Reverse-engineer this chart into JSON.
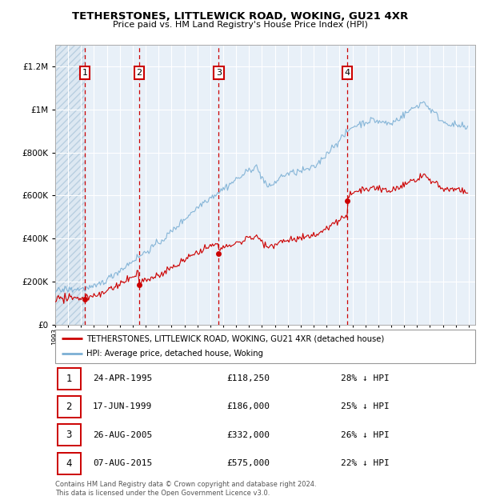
{
  "title": "TETHERSTONES, LITTLEWICK ROAD, WOKING, GU21 4XR",
  "subtitle": "Price paid vs. HM Land Registry's House Price Index (HPI)",
  "ytick_vals": [
    0,
    200000,
    400000,
    600000,
    800000,
    1000000,
    1200000
  ],
  "ylim": [
    0,
    1300000
  ],
  "xlim_start": 1993,
  "xlim_end": 2025.5,
  "sales": [
    {
      "label": 1,
      "date": "24-APR-1995",
      "year": 1995.3,
      "price": 118250,
      "pct": "28% ↓ HPI"
    },
    {
      "label": 2,
      "date": "17-JUN-1999",
      "year": 1999.5,
      "price": 186000,
      "pct": "25% ↓ HPI"
    },
    {
      "label": 3,
      "date": "26-AUG-2005",
      "year": 2005.65,
      "price": 332000,
      "pct": "26% ↓ HPI"
    },
    {
      "label": 4,
      "date": "07-AUG-2015",
      "year": 2015.6,
      "price": 575000,
      "pct": "22% ↓ HPI"
    }
  ],
  "hpi_color": "#7bafd4",
  "sale_color": "#cc0000",
  "legend_sale_label": "TETHERSTONES, LITTLEWICK ROAD, WOKING, GU21 4XR (detached house)",
  "legend_hpi_label": "HPI: Average price, detached house, Woking",
  "footer": "Contains HM Land Registry data © Crown copyright and database right 2024.\nThis data is licensed under the Open Government Licence v3.0.",
  "bg_plot": "#e8f0f8",
  "bg_hatch_color": "#c8d8e8",
  "grid_color": "#ffffff"
}
